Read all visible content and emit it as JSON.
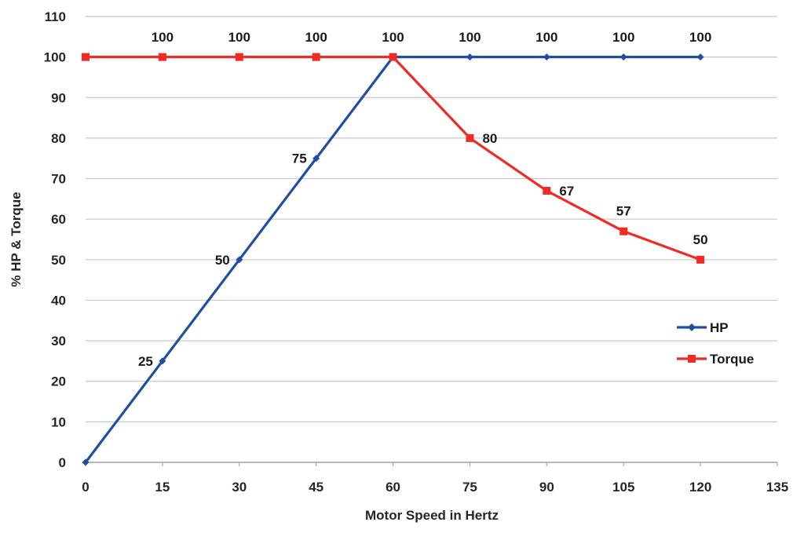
{
  "chart_data": {
    "type": "line",
    "xlabel": "Motor Speed in Hertz",
    "ylabel": "% HP & Torque",
    "xlim": [
      0,
      135
    ],
    "ylim": [
      0,
      110
    ],
    "x_ticks": [
      0,
      15,
      30,
      45,
      60,
      75,
      90,
      105,
      120,
      135
    ],
    "y_ticks": [
      0,
      10,
      20,
      30,
      40,
      50,
      60,
      70,
      80,
      90,
      100,
      110
    ],
    "grid": "horizontal",
    "legend_position": "right",
    "series": [
      {
        "name": "HP",
        "color": "#1f4ea3",
        "marker": "diamond",
        "x": [
          0,
          15,
          30,
          45,
          60,
          75,
          90,
          105,
          120
        ],
        "values": [
          0,
          25,
          50,
          75,
          100,
          100,
          100,
          100,
          100
        ],
        "labels": [
          "",
          "25",
          "50",
          "75",
          "",
          "",
          "",
          "",
          ""
        ]
      },
      {
        "name": "Torque",
        "color": "#ee2b24",
        "marker": "square",
        "x": [
          0,
          15,
          30,
          45,
          60,
          75,
          90,
          105,
          120
        ],
        "values": [
          100,
          100,
          100,
          100,
          100,
          80,
          67,
          57,
          50
        ],
        "labels": [
          "",
          "100",
          "100",
          "100",
          "100",
          "80",
          "67",
          "57",
          "50"
        ]
      }
    ],
    "top_labels_x": [
      15,
      30,
      45,
      60,
      75,
      90,
      105,
      120
    ],
    "top_labels": [
      "100",
      "100",
      "100",
      "100",
      "100",
      "100",
      "100",
      "100"
    ]
  }
}
